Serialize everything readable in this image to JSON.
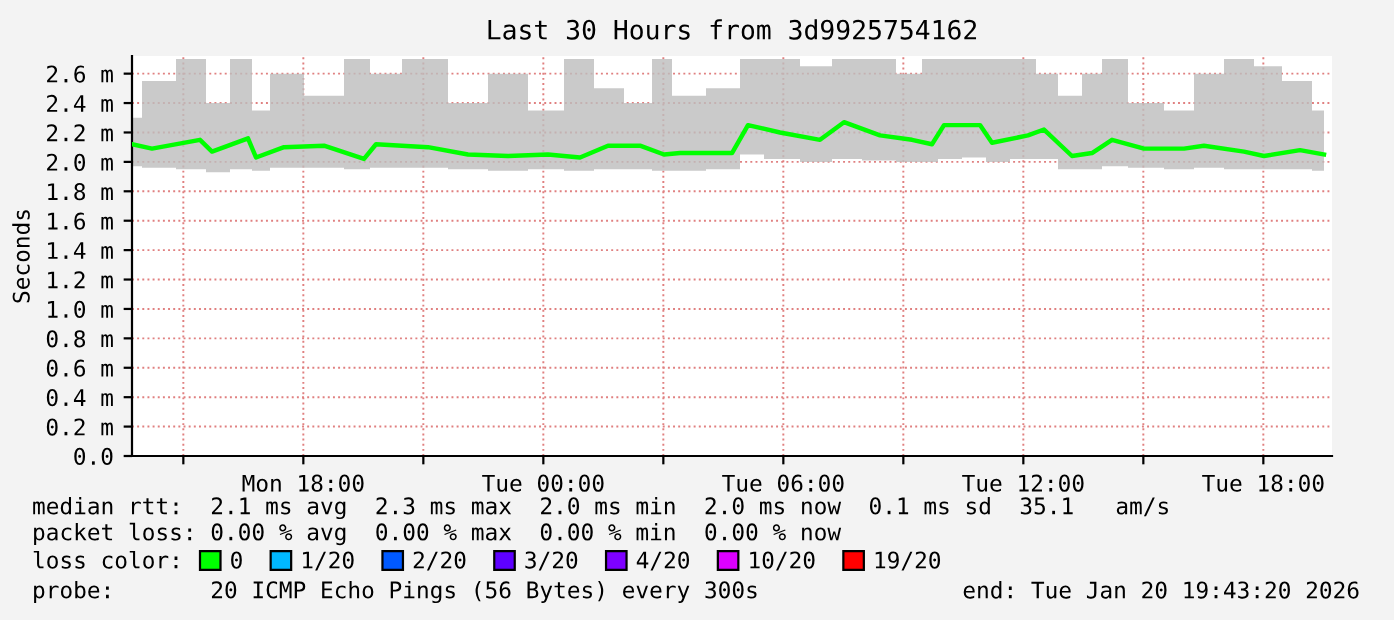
{
  "chart_data": {
    "type": "line",
    "title": "Last 30 Hours from 3d9925754162",
    "ylabel": "Seconds",
    "x": [
      "2026-01-19T13:43",
      "2026-01-19T14:13",
      "2026-01-19T15:25",
      "2026-01-19T15:43",
      "2026-01-19T16:37",
      "2026-01-19T16:49",
      "2026-01-19T17:31",
      "2026-01-19T18:31",
      "2026-01-19T19:31",
      "2026-01-19T19:49",
      "2026-01-19T21:07",
      "2026-01-19T22:07",
      "2026-01-19T23:07",
      "2026-01-20T00:07",
      "2026-01-20T00:55",
      "2026-01-20T01:37",
      "2026-01-20T02:25",
      "2026-01-20T03:01",
      "2026-01-20T03:25",
      "2026-01-20T04:43",
      "2026-01-20T05:07",
      "2026-01-20T05:55",
      "2026-01-20T06:55",
      "2026-01-20T07:31",
      "2026-01-20T08:25",
      "2026-01-20T09:13",
      "2026-01-20T09:43",
      "2026-01-20T10:01",
      "2026-01-20T10:55",
      "2026-01-20T11:13",
      "2026-01-20T12:07",
      "2026-01-20T12:31",
      "2026-01-20T13:13",
      "2026-01-20T13:43",
      "2026-01-20T14:13",
      "2026-01-20T15:01",
      "2026-01-20T16:01",
      "2026-01-20T16:31",
      "2026-01-20T17:31",
      "2026-01-20T18:01",
      "2026-01-20T18:55",
      "2026-01-20T19:31"
    ],
    "series": [
      {
        "name": "0",
        "color": "#00ff00",
        "values": [
          2.12,
          2.09,
          2.15,
          2.07,
          2.16,
          2.03,
          2.1,
          2.11,
          2.02,
          2.12,
          2.1,
          2.05,
          2.04,
          2.05,
          2.03,
          2.11,
          2.11,
          2.05,
          2.06,
          2.06,
          2.25,
          2.2,
          2.15,
          2.27,
          2.18,
          2.15,
          2.12,
          2.25,
          2.25,
          2.13,
          2.18,
          2.22,
          2.04,
          2.06,
          2.15,
          2.09,
          2.09,
          2.11,
          2.07,
          2.04,
          2.08,
          2.05
        ],
        "lower": [
          1.97,
          1.96,
          1.95,
          1.93,
          1.95,
          1.94,
          1.96,
          1.96,
          1.95,
          1.96,
          1.96,
          1.95,
          1.94,
          1.95,
          1.94,
          1.95,
          1.95,
          1.94,
          1.94,
          1.95,
          2.05,
          2.02,
          2.0,
          2.02,
          2.01,
          2.0,
          2.0,
          2.02,
          2.03,
          2.0,
          2.02,
          2.02,
          1.95,
          1.95,
          1.97,
          1.96,
          1.95,
          1.96,
          1.95,
          1.95,
          1.95,
          1.94
        ],
        "upper": [
          2.3,
          2.55,
          2.7,
          2.4,
          2.7,
          2.35,
          2.6,
          2.45,
          2.7,
          2.6,
          2.7,
          2.4,
          2.6,
          2.35,
          2.7,
          2.5,
          2.4,
          2.7,
          2.45,
          2.5,
          2.7,
          2.7,
          2.65,
          2.7,
          2.7,
          2.6,
          2.7,
          2.7,
          2.7,
          2.7,
          2.7,
          2.6,
          2.45,
          2.6,
          2.7,
          2.4,
          2.35,
          2.6,
          2.7,
          2.65,
          2.55,
          2.35
        ]
      },
      {
        "name": "1/20",
        "color": "#00b8ff",
        "values": [
          null,
          null,
          null,
          null,
          null,
          null,
          null,
          null,
          null,
          null,
          null,
          null,
          null,
          null,
          null,
          null,
          null,
          null,
          null,
          null,
          null,
          null,
          null,
          null,
          null,
          null,
          null,
          null,
          null,
          null,
          null,
          null,
          null,
          null,
          null,
          null,
          null,
          null,
          null,
          null,
          null,
          null
        ]
      },
      {
        "name": "2/20",
        "color": "#0059ff",
        "values": [
          null,
          null,
          null,
          null,
          null,
          null,
          null,
          null,
          null,
          null,
          null,
          null,
          null,
          null,
          null,
          null,
          null,
          null,
          null,
          null,
          null,
          null,
          null,
          null,
          null,
          null,
          null,
          null,
          null,
          null,
          null,
          null,
          null,
          null,
          null,
          null,
          null,
          null,
          null,
          null,
          null,
          null
        ]
      },
      {
        "name": "3/20",
        "color": "#5e00ff",
        "values": [
          null,
          null,
          null,
          null,
          null,
          null,
          null,
          null,
          null,
          null,
          null,
          null,
          null,
          null,
          null,
          null,
          null,
          null,
          null,
          null,
          null,
          null,
          null,
          null,
          null,
          null,
          null,
          null,
          null,
          null,
          null,
          null,
          null,
          null,
          null,
          null,
          null,
          null,
          null,
          null,
          null,
          null
        ]
      },
      {
        "name": "4/20",
        "color": "#7e00ff",
        "values": [
          null,
          null,
          null,
          null,
          null,
          null,
          null,
          null,
          null,
          null,
          null,
          null,
          null,
          null,
          null,
          null,
          null,
          null,
          null,
          null,
          null,
          null,
          null,
          null,
          null,
          null,
          null,
          null,
          null,
          null,
          null,
          null,
          null,
          null,
          null,
          null,
          null,
          null,
          null,
          null,
          null,
          null
        ]
      },
      {
        "name": "10/20",
        "color": "#dd00ff",
        "values": [
          null,
          null,
          null,
          null,
          null,
          null,
          null,
          null,
          null,
          null,
          null,
          null,
          null,
          null,
          null,
          null,
          null,
          null,
          null,
          null,
          null,
          null,
          null,
          null,
          null,
          null,
          null,
          null,
          null,
          null,
          null,
          null,
          null,
          null,
          null,
          null,
          null,
          null,
          null,
          null,
          null,
          null
        ]
      },
      {
        "name": "19/20",
        "color": "#ff0000",
        "values": [
          null,
          null,
          null,
          null,
          null,
          null,
          null,
          null,
          null,
          null,
          null,
          null,
          null,
          null,
          null,
          null,
          null,
          null,
          null,
          null,
          null,
          null,
          null,
          null,
          null,
          null,
          null,
          null,
          null,
          null,
          null,
          null,
          null,
          null,
          null,
          null,
          null,
          null,
          null,
          null,
          null,
          null
        ]
      }
    ],
    "xlim": [
      "2026-01-19T13:43",
      "2026-01-20T19:43"
    ],
    "xticks": [
      {
        "value": "2026-01-19T15:00",
        "label": null
      },
      {
        "value": "2026-01-19T18:00",
        "label": "Mon 18:00"
      },
      {
        "value": "2026-01-19T21:00",
        "label": null
      },
      {
        "value": "2026-01-20T00:00",
        "label": "Tue 00:00"
      },
      {
        "value": "2026-01-20T03:00",
        "label": null
      },
      {
        "value": "2026-01-20T06:00",
        "label": "Tue 06:00"
      },
      {
        "value": "2026-01-20T09:00",
        "label": null
      },
      {
        "value": "2026-01-20T12:00",
        "label": "Tue 12:00"
      },
      {
        "value": "2026-01-20T15:00",
        "label": null
      },
      {
        "value": "2026-01-20T18:00",
        "label": "Tue 18:00"
      }
    ],
    "ylim": [
      0,
      2.72
    ],
    "yticks": [
      {
        "value": 0,
        "label": "0.0"
      },
      {
        "value": 0.2,
        "label": "0.2 m"
      },
      {
        "value": 0.4,
        "label": "0.4 m"
      },
      {
        "value": 0.6,
        "label": "0.6 m"
      },
      {
        "value": 0.8,
        "label": "0.8 m"
      },
      {
        "value": 1.0,
        "label": "1.0 m"
      },
      {
        "value": 1.2,
        "label": "1.2 m"
      },
      {
        "value": 1.4,
        "label": "1.4 m"
      },
      {
        "value": 1.6,
        "label": "1.6 m"
      },
      {
        "value": 1.8,
        "label": "1.8 m"
      },
      {
        "value": 2.0,
        "label": "2.0 m"
      },
      {
        "value": 2.2,
        "label": "2.2 m"
      },
      {
        "value": 2.4,
        "label": "2.4 m"
      },
      {
        "value": 2.6,
        "label": "2.6 m"
      }
    ],
    "grid": true,
    "legend": "bottom",
    "annotations": [
      "median rtt:  2.1 ms avg  2.3 ms max  2.0 ms min  2.0 ms now  0.1 ms sd  35.1   am/s",
      "packet loss: 0.00 % avg  0.00 % max  0.00 % min  0.00 % now",
      "loss color:",
      "probe:       20 ICMP Echo Pings (56 Bytes) every 300s",
      "end: Tue Jan 20 19:43:20 2026"
    ]
  }
}
